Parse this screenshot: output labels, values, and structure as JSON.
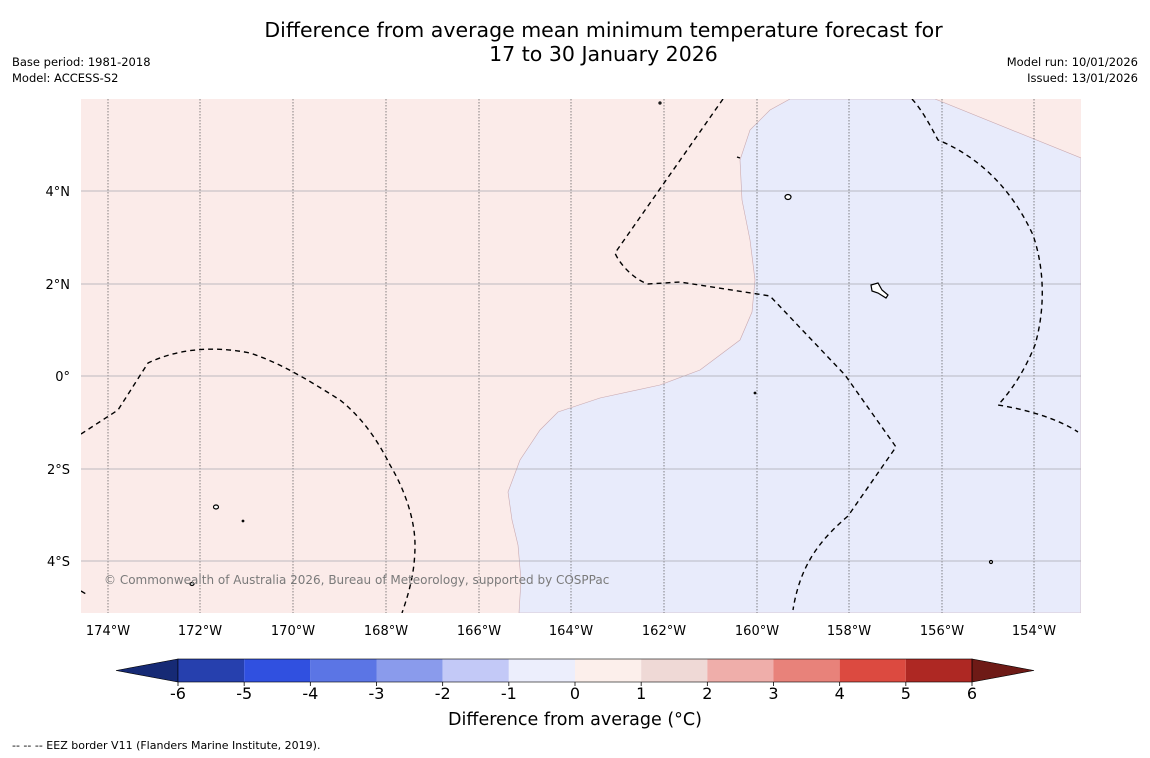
{
  "title": {
    "line1": "Difference from average mean minimum temperature forecast for",
    "line2": "17 to 30 January 2026"
  },
  "meta_left": {
    "base_period": "Base period: 1981-2018",
    "model": "Model: ACCESS-S2"
  },
  "meta_right": {
    "model_run": "Model run: 10/01/2026",
    "issued": "Issued: 13/01/2026"
  },
  "map": {
    "copyright": "© Commonwealth of Australia 2026, Bureau of Meteorology, supported by COSPPac",
    "lon_labels": [
      "174°W",
      "172°W",
      "170°W",
      "168°W",
      "166°W",
      "164°W",
      "162°W",
      "160°W",
      "158°W",
      "156°W",
      "154°W"
    ],
    "lat_labels": [
      "4°N",
      "2°N",
      "0°",
      "2°S",
      "4°S"
    ],
    "regions": [
      {
        "name": "warm-anomaly-region",
        "category": "0 to 1",
        "color": "#fbebe9"
      },
      {
        "name": "cool-anomaly-region",
        "category": "-1 to 0",
        "color": "#e8ebfb"
      }
    ]
  },
  "colorbar": {
    "title": "Difference from average (°C)",
    "ticks": [
      "-6",
      "-5",
      "-4",
      "-3",
      "-2",
      "-1",
      "0",
      "1",
      "2",
      "3",
      "4",
      "5",
      "6"
    ],
    "colors": [
      "#2640ae",
      "#3050e0",
      "#5b75e5",
      "#8a9bec",
      "#c3c9f7",
      "#eceefc",
      "#fcefeb",
      "#efd9d6",
      "#efaeaa",
      "#e8827a",
      "#dc4a40",
      "#ae2823"
    ],
    "extend_low_color": "#162a75",
    "extend_high_color": "#6e1a16"
  },
  "footer": "--  --  -- EEZ border V11 (Flanders Marine Institute, 2019)."
}
